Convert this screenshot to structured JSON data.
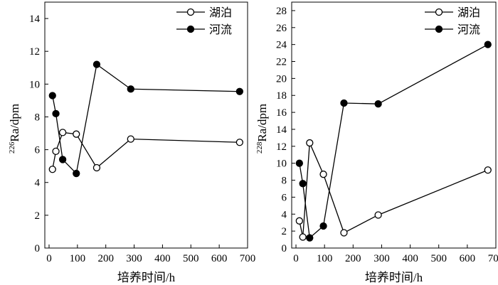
{
  "chart_data": [
    {
      "type": "line",
      "xlabel": "培养时间/h",
      "ylabel": "226Ra/dpm",
      "ylabel_sup": "226",
      "ylabel_main": "Ra/dpm",
      "xlim": [
        -15,
        700
      ],
      "ylim": [
        0,
        15
      ],
      "xticks": [
        0,
        100,
        200,
        300,
        400,
        500,
        600,
        700
      ],
      "yticks": [
        0,
        2,
        4,
        6,
        8,
        10,
        12,
        14
      ],
      "legend_position": "top-right",
      "grid": false,
      "series": [
        {
          "name": "湖泊",
          "marker": "open-circle",
          "x": [
            12,
            24,
            48,
            96,
            168,
            288,
            672
          ],
          "y": [
            4.8,
            5.9,
            7.05,
            6.95,
            4.9,
            6.65,
            6.45
          ]
        },
        {
          "name": "河流",
          "marker": "filled-circle",
          "x": [
            12,
            24,
            48,
            96,
            168,
            288,
            672
          ],
          "y": [
            9.3,
            8.2,
            5.4,
            4.55,
            11.2,
            9.7,
            9.55
          ]
        }
      ]
    },
    {
      "type": "line",
      "xlabel": "培养时间/h",
      "ylabel": "228Ra/dpm",
      "ylabel_sup": "228",
      "ylabel_main": "Ra/dpm",
      "xlim": [
        -15,
        700
      ],
      "ylim": [
        0,
        29
      ],
      "xticks": [
        0,
        100,
        200,
        300,
        400,
        500,
        600,
        700
      ],
      "yticks": [
        0,
        2,
        4,
        6,
        8,
        10,
        12,
        14,
        16,
        18,
        20,
        22,
        24,
        26,
        28
      ],
      "legend_position": "top-right",
      "grid": false,
      "series": [
        {
          "name": "湖泊",
          "marker": "open-circle",
          "x": [
            12,
            24,
            48,
            96,
            168,
            288,
            672
          ],
          "y": [
            3.2,
            1.3,
            12.4,
            8.7,
            1.8,
            3.9,
            9.2
          ]
        },
        {
          "name": "河流",
          "marker": "filled-circle",
          "x": [
            12,
            24,
            48,
            96,
            168,
            288,
            672
          ],
          "y": [
            10.0,
            7.6,
            1.2,
            2.6,
            17.1,
            17.0,
            24.0
          ]
        }
      ]
    }
  ]
}
